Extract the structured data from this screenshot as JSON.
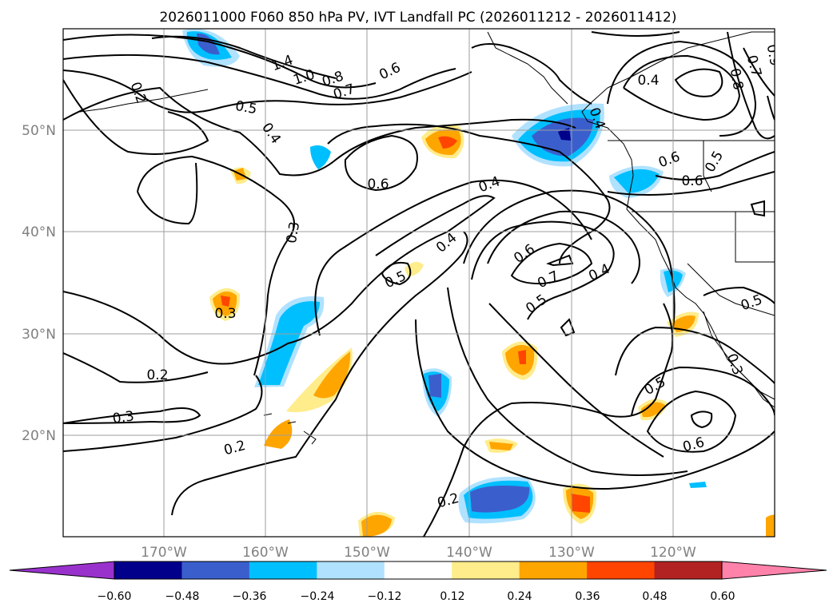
{
  "chart_data": {
    "type": "heatmap",
    "title": "2026011000 F060 850 hPa PV, IVT Landfall PC (2026011212 - 2026011412)",
    "x_ticks": [
      "170°W",
      "160°W",
      "150°W",
      "140°W",
      "130°W",
      "120°W"
    ],
    "y_ticks": [
      "50°N",
      "40°N",
      "30°N",
      "20°N"
    ],
    "colorbar": {
      "ticks": [
        "−0.60",
        "−0.48",
        "−0.36",
        "−0.24",
        "−0.12",
        "0.12",
        "0.24",
        "0.36",
        "0.48",
        "0.60"
      ],
      "colors": [
        "#9932cc",
        "#00008b",
        "#3a5fcd",
        "#00bfff",
        "#b0e2ff",
        "#ffffff",
        "#ffec8b",
        "#ffa500",
        "#ff4500",
        "#b22222",
        "#ff82ab"
      ]
    },
    "contour_labels": [
      "1.4",
      "1.0",
      "0.8",
      "0.7",
      "0.6",
      "0.5",
      "0.4",
      "0.2",
      "0.4",
      "0.6",
      "0.6",
      "0.4",
      "0.9",
      "0.7",
      "0.8",
      "0.6",
      "0.5",
      "0.4",
      "0.3",
      "0.3",
      "0.4",
      "0.5",
      "0.6",
      "0.7",
      "0.5",
      "0.4",
      "0.5",
      "0.6",
      "0.5",
      "0.3",
      "0.2",
      "0.3",
      "0.2",
      "0.2"
    ]
  }
}
